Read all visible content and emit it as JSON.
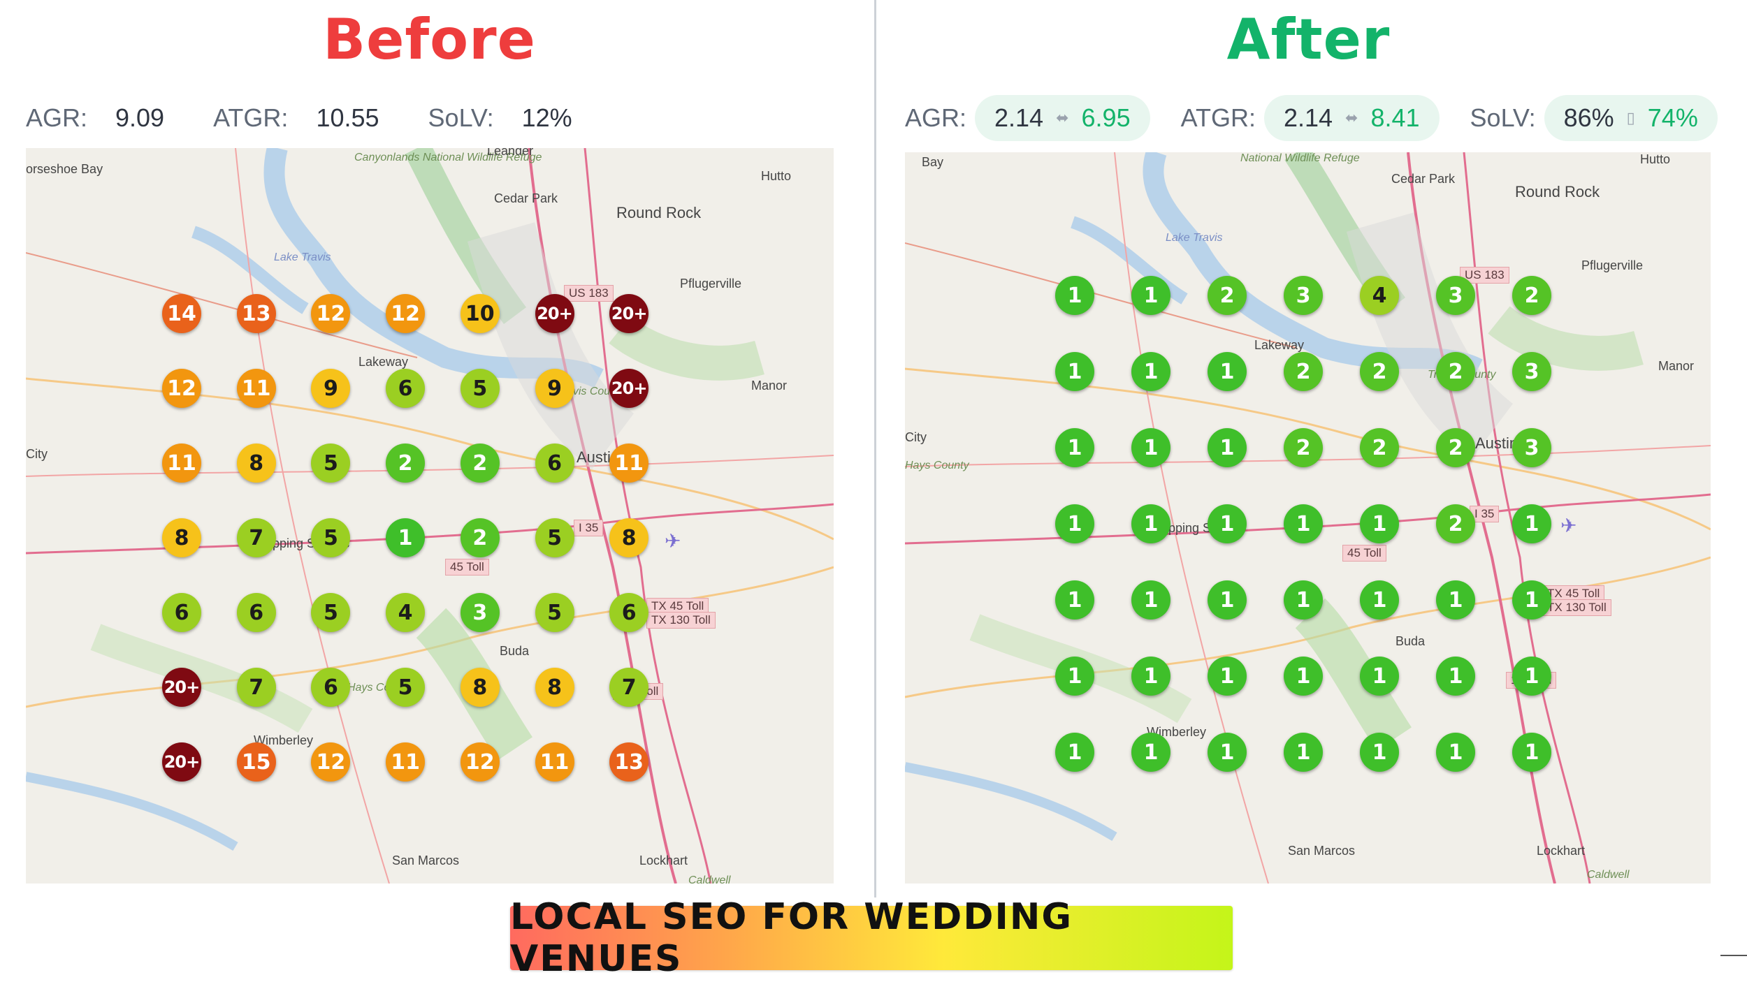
{
  "before": {
    "title": "Before",
    "metrics": [
      {
        "label": "AGR:",
        "value": "9.09"
      },
      {
        "label": "ATGR:",
        "value": "10.55"
      },
      {
        "label": "SoLV:",
        "value": "12%"
      }
    ],
    "grid": [
      [
        "14",
        "13",
        "12",
        "12",
        "10",
        "20+",
        "20+"
      ],
      [
        "12",
        "11",
        "9",
        "6",
        "5",
        "9",
        "20+"
      ],
      [
        "11",
        "8",
        "5",
        "2",
        "2",
        "6",
        "11"
      ],
      [
        "8",
        "7",
        "5",
        "1",
        "2",
        "5",
        "8"
      ],
      [
        "6",
        "6",
        "5",
        "4",
        "3",
        "5",
        "6"
      ],
      [
        "20+",
        "7",
        "6",
        "5",
        "8",
        "8",
        "7"
      ],
      [
        "20+",
        "15",
        "12",
        "11",
        "12",
        "11",
        "13"
      ]
    ],
    "places": [
      "orseshoe Bay",
      "Canyonlands National Wildlife Refuge",
      "Leander",
      "Hutto",
      "Cedar Park",
      "Round Rock",
      "Lake Travis",
      "Pflugerville",
      "Lakeway",
      "Manor",
      "Travis County",
      "City",
      "Austin",
      "Dripping Springs",
      "Buda",
      "Hays County",
      "Wimberley",
      "San Marcos",
      "Lockhart",
      "Caldwell"
    ],
    "shields": [
      "US 183",
      "I 35",
      "45 Toll",
      "TX 45 Toll",
      "TX 130 Toll",
      "130 Toll"
    ]
  },
  "after": {
    "title": "After",
    "metrics": [
      {
        "label": "AGR:",
        "old": "2.14",
        "arrow": "⬌",
        "new": "6.95"
      },
      {
        "label": "ATGR:",
        "old": "2.14",
        "arrow": "⬌",
        "new": "8.41"
      },
      {
        "label": "SoLV:",
        "old": "86%",
        "arrow": "▯",
        "new": "74%"
      }
    ],
    "grid": [
      [
        "1",
        "1",
        "2",
        "3",
        "4",
        "3",
        "2"
      ],
      [
        "1",
        "1",
        "1",
        "2",
        "2",
        "2",
        "3"
      ],
      [
        "1",
        "1",
        "1",
        "2",
        "2",
        "2",
        "3"
      ],
      [
        "1",
        "1",
        "1",
        "1",
        "1",
        "2",
        "1"
      ],
      [
        "1",
        "1",
        "1",
        "1",
        "1",
        "1",
        "1"
      ],
      [
        "1",
        "1",
        "1",
        "1",
        "1",
        "1",
        "1"
      ],
      [
        "1",
        "1",
        "1",
        "1",
        "1",
        "1",
        "1"
      ]
    ],
    "places": [
      "Bay",
      "National Wildlife Refuge",
      "Hutto",
      "Cedar Park",
      "Round Rock",
      "Lake Travis",
      "Pflugerville",
      "Lakeway",
      "Manor",
      "Travis County",
      "City",
      "Hays County",
      "Austin",
      "Dripping Springs",
      "Buda",
      "Wimberley",
      "San Marcos",
      "Lockhart",
      "Caldwell"
    ],
    "shields": [
      "US 183",
      "I 35",
      "45 Toll",
      "TX 45 Toll",
      "TX 130 Toll",
      "130 Toll"
    ]
  },
  "footer": "LOCAL SEO FOR WEDDING VENUES",
  "colors": {
    "before_title": "#ee3d3d",
    "after_title": "#13b36a",
    "rank_1": "#3fbf2a",
    "rank_2_3": "#55c326",
    "rank_4_7": "#9bcf22",
    "rank_8_10": "#f6c21a",
    "rank_11_12": "#f2960f",
    "rank_13_15": "#e9621b",
    "rank_20_plus": "#7f0a12"
  }
}
